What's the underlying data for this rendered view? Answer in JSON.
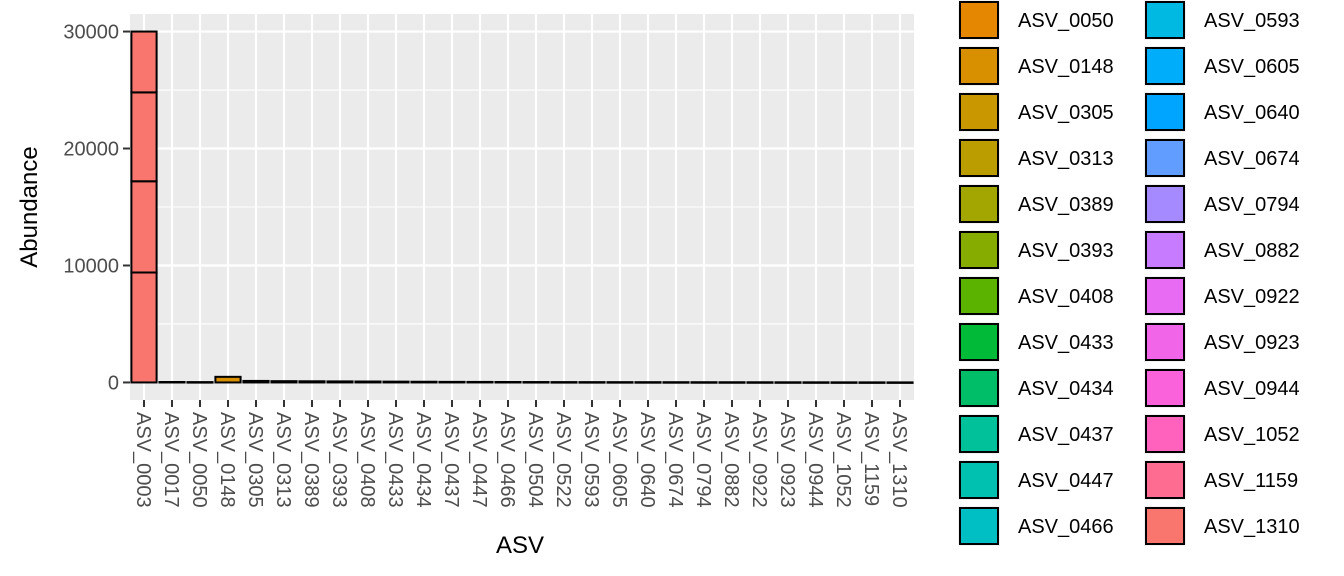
{
  "chart_data": {
    "type": "bar",
    "stacked": true,
    "xlabel": "ASV",
    "ylabel": "Abundance",
    "ylim": [
      -1500,
      31500
    ],
    "y_ticks": [
      0,
      10000,
      20000,
      30000
    ],
    "y_tick_labels": [
      "0",
      "10000",
      "20000",
      "30000"
    ],
    "grid": true,
    "legend_position": "right",
    "categories": [
      "ASV_0003",
      "ASV_0017",
      "ASV_0050",
      "ASV_0148",
      "ASV_0305",
      "ASV_0313",
      "ASV_0389",
      "ASV_0393",
      "ASV_0408",
      "ASV_0433",
      "ASV_0434",
      "ASV_0437",
      "ASV_0447",
      "ASV_0466",
      "ASV_0504",
      "ASV_0522",
      "ASV_0593",
      "ASV_0605",
      "ASV_0640",
      "ASV_0674",
      "ASV_0794",
      "ASV_0882",
      "ASV_0922",
      "ASV_0923",
      "ASV_0944",
      "ASV_1052",
      "ASV_1159",
      "ASV_1310"
    ],
    "bar_fills": [
      "#F8766D",
      "#F8766D",
      "#E58700",
      "#D89000",
      "#C99800",
      "#BB9D00",
      "#A3A500",
      "#86AC00",
      "#5BB300",
      "#00BA38",
      "#00BE67",
      "#00C19A",
      "#00C0AF",
      "#00BFC4",
      "#00C08B",
      "#00BD9E",
      "#00B9E3",
      "#00ADFA",
      "#00A5FF",
      "#619CFF",
      "#A58AFF",
      "#C77CFF",
      "#E76BF3",
      "#F166E8",
      "#FA62DB",
      "#FF62BC",
      "#FF6C91",
      "#F8766D"
    ],
    "bar_segments": [
      [
        9400,
        7800,
        7600,
        5200
      ],
      [
        40
      ],
      [
        30
      ],
      [
        480
      ],
      [
        130
      ],
      [
        110
      ],
      [
        100
      ],
      [
        90
      ],
      [
        80
      ],
      [
        70
      ],
      [
        60
      ],
      [
        50
      ],
      [
        45
      ],
      [
        40
      ],
      [
        35
      ],
      [
        30
      ],
      [
        28
      ],
      [
        26
      ],
      [
        24
      ],
      [
        22
      ],
      [
        20
      ],
      [
        18
      ],
      [
        16
      ],
      [
        14
      ],
      [
        12
      ],
      [
        10
      ],
      [
        8
      ],
      [
        6
      ]
    ],
    "legend": {
      "entries": [
        "ASV_0050",
        "ASV_0148",
        "ASV_0305",
        "ASV_0313",
        "ASV_0389",
        "ASV_0393",
        "ASV_0408",
        "ASV_0433",
        "ASV_0434",
        "ASV_0437",
        "ASV_0447",
        "ASV_0466",
        "ASV_0593",
        "ASV_0605",
        "ASV_0640",
        "ASV_0674",
        "ASV_0794",
        "ASV_0882",
        "ASV_0922",
        "ASV_0923",
        "ASV_0944",
        "ASV_1052",
        "ASV_1159",
        "ASV_1310"
      ],
      "colors": [
        "#E58700",
        "#D89000",
        "#C99800",
        "#BB9D00",
        "#A3A500",
        "#86AC00",
        "#5BB300",
        "#00BA38",
        "#00BE67",
        "#00C19A",
        "#00C0AF",
        "#00BFC4",
        "#00B9E3",
        "#00ADFA",
        "#00A5FF",
        "#619CFF",
        "#A58AFF",
        "#C77CFF",
        "#E76BF3",
        "#F166E8",
        "#FA62DB",
        "#FF62BC",
        "#FF6C91",
        "#F8766D"
      ]
    }
  }
}
